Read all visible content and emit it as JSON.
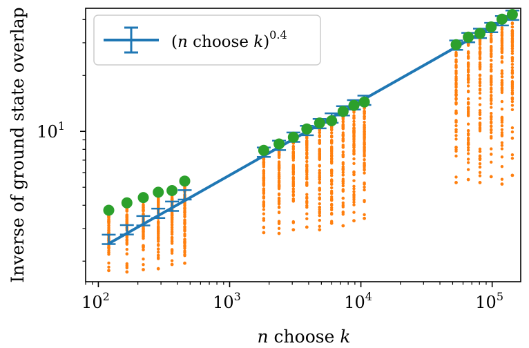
{
  "chart_data": {
    "type": "scatter",
    "xlabel_n": "n",
    "xlabel_rest": " choose ",
    "xlabel_k": "k",
    "ylabel": "Inverse of ground state overlap",
    "x_scale": "log",
    "y_scale": "log",
    "xlim": [
      80,
      165000
    ],
    "ylim": [
      1.55,
      46
    ],
    "x_ticks": [
      {
        "value": 100,
        "base": "10",
        "exp": "2"
      },
      {
        "value": 1000,
        "base": "10",
        "exp": "3"
      },
      {
        "value": 10000,
        "base": "10",
        "exp": "4"
      },
      {
        "value": 100000,
        "base": "10",
        "exp": "5"
      }
    ],
    "y_ticks": [
      {
        "value": 10,
        "base": "10",
        "exp": "1"
      }
    ],
    "grid": false,
    "legend_position": "top-left",
    "legend_label": {
      "open": "(",
      "n": "n",
      "mid": " choose ",
      "k": "k",
      "close": ")",
      "exp": "0.4"
    },
    "colors": {
      "line": "#1f77b4",
      "scatter": "#ff7f0e",
      "max_markers": "#2ca02c"
    },
    "groups": [
      {
        "x": 120,
        "max": 3.76,
        "min": 1.78,
        "mean": 2.62
      },
      {
        "x": 165,
        "max": 4.12,
        "min": 1.75,
        "mean": 2.95
      },
      {
        "x": 220,
        "max": 4.4,
        "min": 1.8,
        "mean": 3.3
      },
      {
        "x": 286,
        "max": 4.7,
        "min": 1.82,
        "mean": 3.62
      },
      {
        "x": 364,
        "max": 4.8,
        "min": 1.92,
        "mean": 3.95
      },
      {
        "x": 455,
        "max": 5.4,
        "min": 1.95,
        "mean": 4.55
      },
      {
        "x": 1820,
        "max": 7.9,
        "min": 2.85,
        "mean": 7.72
      },
      {
        "x": 2380,
        "max": 8.55,
        "min": 2.82,
        "mean": 8.4
      },
      {
        "x": 3060,
        "max": 9.3,
        "min": 2.95,
        "mean": 9.3
      },
      {
        "x": 3876,
        "max": 10.3,
        "min": 3.05,
        "mean": 10.1
      },
      {
        "x": 4845,
        "max": 11.1,
        "min": 2.95,
        "mean": 11.0
      },
      {
        "x": 5985,
        "max": 11.4,
        "min": 3.2,
        "mean": 11.8
      },
      {
        "x": 7315,
        "max": 12.8,
        "min": 3.1,
        "mean": 12.9
      },
      {
        "x": 8855,
        "max": 13.8,
        "min": 3.3,
        "mean": 13.9
      },
      {
        "x": 10626,
        "max": 14.4,
        "min": 3.4,
        "mean": 14.7
      },
      {
        "x": 53130,
        "max": 29.3,
        "min": 5.3,
        "mean": 29.1
      },
      {
        "x": 65780,
        "max": 32.2,
        "min": 5.5,
        "mean": 32.0
      },
      {
        "x": 80730,
        "max": 33.7,
        "min": 5.3,
        "mean": 33.7
      },
      {
        "x": 98280,
        "max": 36.5,
        "min": 5.7,
        "mean": 36.2
      },
      {
        "x": 118755,
        "max": 40.2,
        "min": 5.2,
        "mean": 39.4
      },
      {
        "x": 142506,
        "max": 42.6,
        "min": 5.8,
        "mean": 42.2
      }
    ]
  }
}
